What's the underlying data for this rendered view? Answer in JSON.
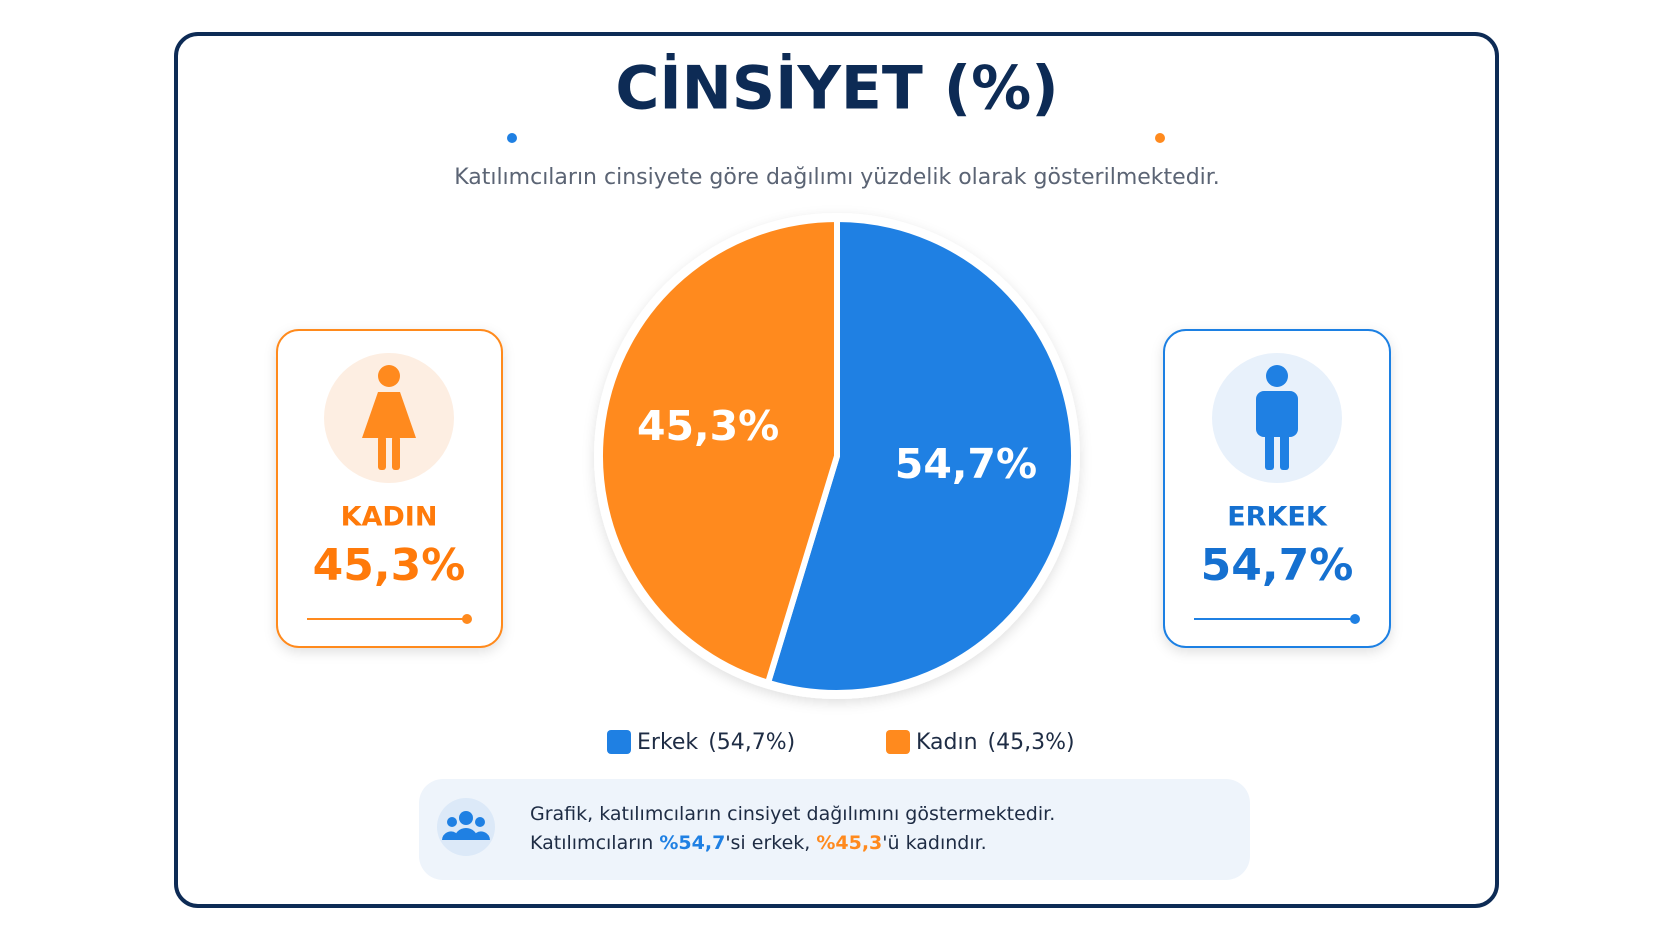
{
  "chart_data": {
    "type": "pie",
    "title": "CİNSİYET (%)",
    "subtitle": "Katılımcıların cinsiyete göre dağılımı yüzdelik olarak gösterilmektedir.",
    "categories": [
      "Erkek",
      "Kadın"
    ],
    "values": [
      54.7,
      45.3
    ],
    "value_labels": [
      "54,7%",
      "45,3%"
    ],
    "colors": [
      "#1f80e3",
      "#ff8a1e"
    ],
    "legend_labels": [
      "(54,7%)",
      "(45,3%)"
    ]
  },
  "cards": [
    {
      "label": "KADIN",
      "text": "45,3%"
    },
    {
      "label": "ERKEK",
      "text": "54,7%"
    }
  ],
  "note": {
    "line1": "Grafik, katılımcıların cinsiyet dağılımını göstermektedir.",
    "line2": [
      "Katılımcıların ",
      "%54,7",
      "'si erkek, ",
      "%45,3",
      "'ü kadındır."
    ]
  }
}
